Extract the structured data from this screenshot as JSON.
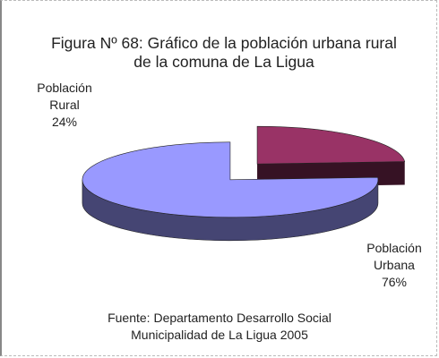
{
  "chart_data": {
    "type": "pie3d",
    "title": "Figura Nº 68: Gráfico de la población urbana rural de la comuna de La Ligua",
    "categories": [
      "Población Rural",
      "Población Urbana"
    ],
    "values": [
      24,
      76
    ],
    "value_labels": [
      "24%",
      "76%"
    ],
    "colors": [
      "#993366",
      "#9999ff"
    ],
    "source": "Fuente: Departamento Desarrollo Social Municipalidad de La Ligua 2005"
  }
}
